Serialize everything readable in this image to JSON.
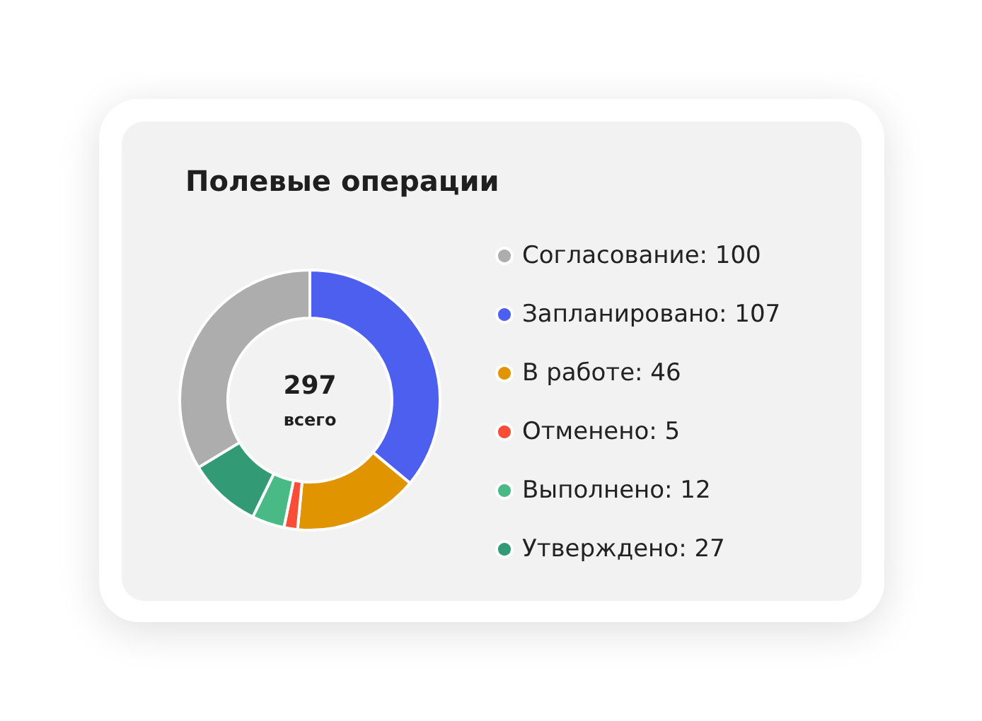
{
  "chart_data": {
    "type": "donut",
    "title": "Полевые операции",
    "categories": [
      "Согласование: 100",
      "Запланировано: 107",
      "В работе: 46",
      "Отменено: 5",
      "Выполнено: 12",
      "Утверждено: 27"
    ],
    "values": [
      100,
      107,
      46,
      5,
      12,
      27
    ],
    "colors": [
      "#adadad",
      "#4c5fef",
      "#e09500",
      "#fa4d38",
      "#49b985",
      "#329a74"
    ],
    "legend": "right",
    "annotations": [
      "297",
      "всего"
    ]
  }
}
